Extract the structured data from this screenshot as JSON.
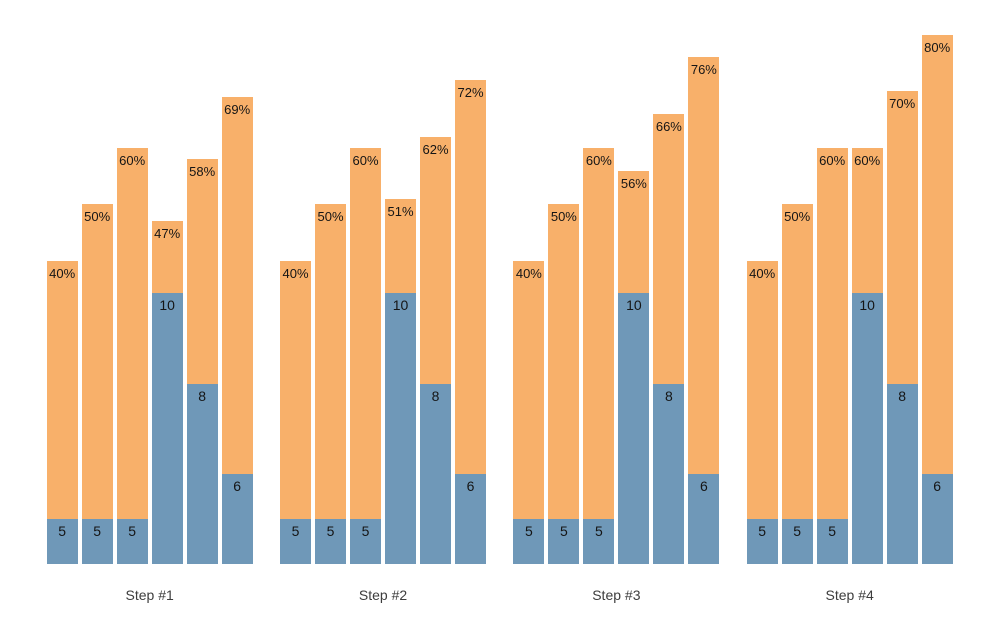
{
  "page": {
    "background": "#ffffff"
  },
  "chart_data": {
    "type": "bar",
    "subtype": "grouped stacked columns, no axes, labels inside bars",
    "title": "",
    "xlabel": "",
    "ylabel": "",
    "grid": false,
    "legend": false,
    "groups": [
      "Step #1",
      "Step #2",
      "Step #3",
      "Step #4"
    ],
    "bars_per_group": 6,
    "blue_values": [
      [
        5,
        5,
        5,
        10,
        8,
        6
      ],
      [
        5,
        5,
        5,
        10,
        8,
        6
      ],
      [
        5,
        5,
        5,
        10,
        8,
        6
      ],
      [
        5,
        5,
        5,
        10,
        8,
        6
      ]
    ],
    "percents": [
      [
        40,
        50,
        60,
        47,
        58,
        69
      ],
      [
        40,
        50,
        60,
        51,
        62,
        72
      ],
      [
        40,
        50,
        60,
        56,
        66,
        76
      ],
      [
        40,
        50,
        60,
        60,
        70,
        80
      ]
    ],
    "percent_labels": [
      [
        "40%",
        "50%",
        "60%",
        "47%",
        "58%",
        "69%"
      ],
      [
        "40%",
        "50%",
        "60%",
        "51%",
        "62%",
        "72%"
      ],
      [
        "40%",
        "50%",
        "60%",
        "56%",
        "66%",
        "76%"
      ],
      [
        "40%",
        "50%",
        "60%",
        "60%",
        "70%",
        "80%"
      ]
    ],
    "colors": {
      "orange_segment": "#f8b06a",
      "blue_segment": "#6f98b8",
      "bar_label_text": "#151515",
      "step_label_text": "#3d3d3d"
    }
  }
}
